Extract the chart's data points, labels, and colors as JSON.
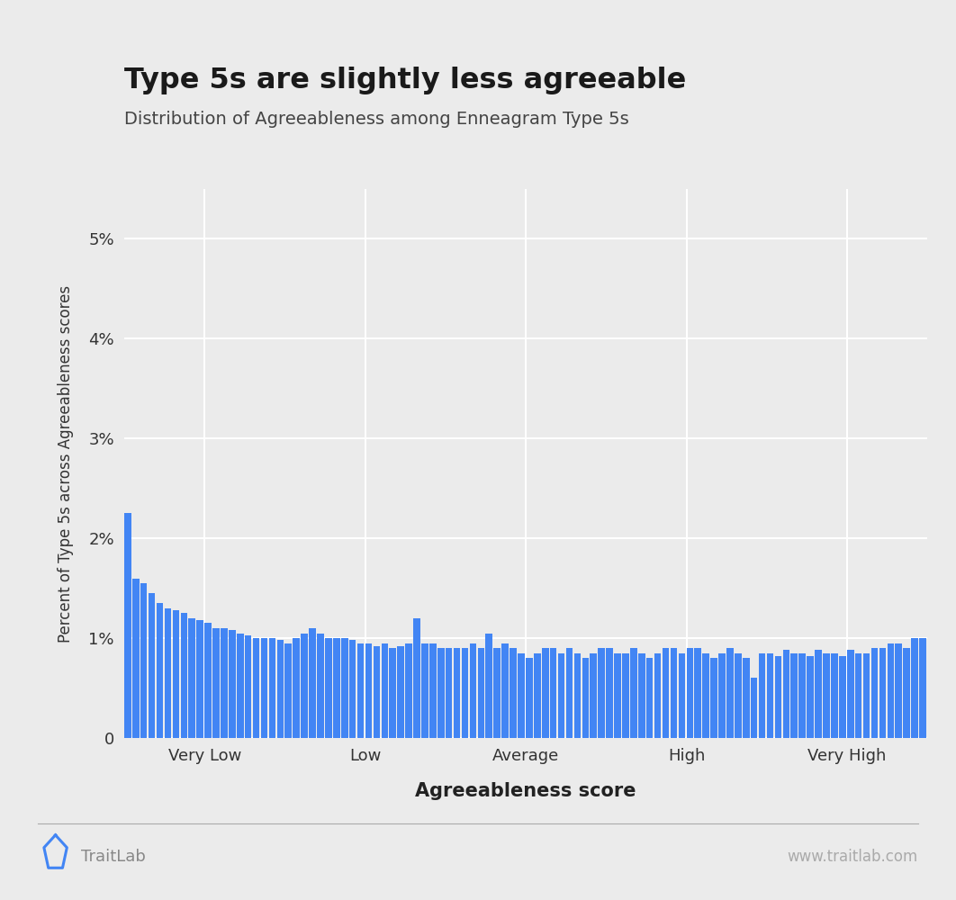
{
  "title": "Type 5s are slightly less agreeable",
  "subtitle": "Distribution of Agreeableness among Enneagram Type 5s",
  "xlabel": "Agreeableness score",
  "ylabel": "Percent of Type 5s across Agreeableness scores",
  "bar_color": "#4285f4",
  "background_color": "#ebebeb",
  "plot_bg_color": "#e8e8e8",
  "ylim": [
    0,
    0.055
  ],
  "yticks": [
    0,
    0.01,
    0.02,
    0.03,
    0.04,
    0.05
  ],
  "ytick_labels": [
    "0",
    "1%",
    "2%",
    "3%",
    "4%",
    "5%"
  ],
  "xtick_positions": [
    0.1,
    0.3,
    0.5,
    0.7,
    0.9
  ],
  "xtick_labels": [
    "Very Low",
    "Low",
    "Average",
    "High",
    "Very High"
  ],
  "n_bars": 100,
  "bar_values": [
    0.0225,
    0.016,
    0.0155,
    0.0145,
    0.0135,
    0.013,
    0.0128,
    0.0125,
    0.012,
    0.0118,
    0.0115,
    0.011,
    0.011,
    0.0108,
    0.0105,
    0.0103,
    0.01,
    0.01,
    0.01,
    0.0098,
    0.0095,
    0.01,
    0.0105,
    0.011,
    0.0105,
    0.01,
    0.01,
    0.01,
    0.0098,
    0.0095,
    0.0095,
    0.0092,
    0.0095,
    0.009,
    0.0092,
    0.0095,
    0.012,
    0.0095,
    0.0095,
    0.009,
    0.009,
    0.009,
    0.009,
    0.0095,
    0.009,
    0.0105,
    0.009,
    0.0095,
    0.009,
    0.0085,
    0.008,
    0.0085,
    0.009,
    0.009,
    0.0085,
    0.009,
    0.0085,
    0.008,
    0.0085,
    0.009,
    0.009,
    0.0085,
    0.0085,
    0.009,
    0.0085,
    0.008,
    0.0085,
    0.009,
    0.009,
    0.0085,
    0.009,
    0.009,
    0.0085,
    0.008,
    0.0085,
    0.009,
    0.0085,
    0.008,
    0.006,
    0.0085,
    0.0085,
    0.0082,
    0.0088,
    0.0085,
    0.0085,
    0.0082,
    0.0088,
    0.0085,
    0.0085,
    0.0082,
    0.0088,
    0.0085,
    0.0085,
    0.009,
    0.009,
    0.0095,
    0.0095,
    0.009,
    0.01,
    0.01
  ],
  "footer_text_left": "TraitLab",
  "footer_text_right": "www.traitlab.com"
}
